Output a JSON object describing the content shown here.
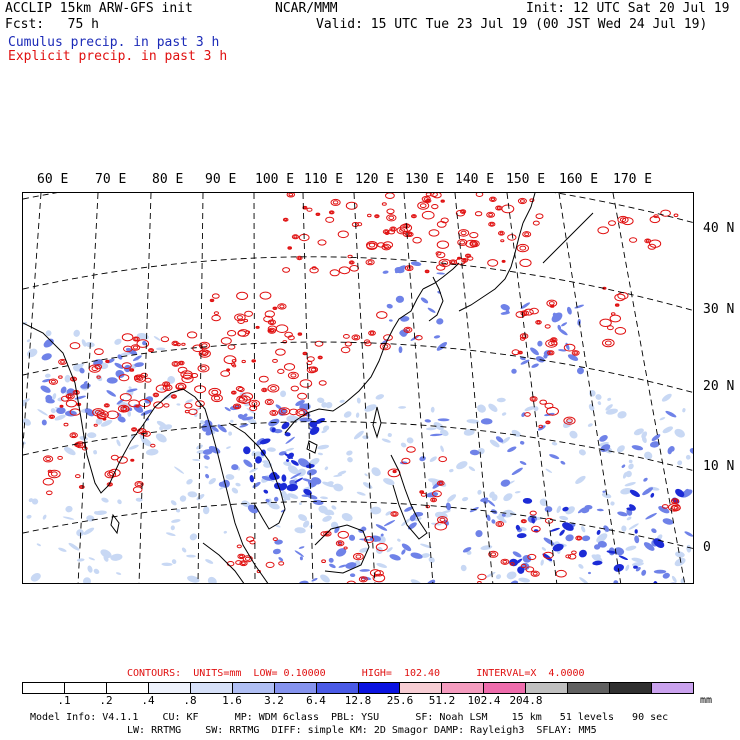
{
  "header": {
    "line1_left": "ACCLIP 15km ARW-GFS init",
    "line1_center": "NCAR/MMM",
    "line1_right": "Init: 12 UTC Sat 20 Jul 19",
    "line2_left": "Fcst:   75 h",
    "line2_right": "Valid: 15 UTC Tue 23 Jul 19 (00 JST Wed 24 Jul 19)",
    "legend_cumulus": "Cumulus precip. in past 3 h",
    "legend_explicit": "Explicit precip. in past 3 h"
  },
  "map": {
    "lon_labels": [
      "60 E",
      "70 E",
      "80 E",
      "90 E",
      "100 E",
      "110 E",
      "120 E",
      "130 E",
      "140 E",
      "150 E",
      "160 E",
      "170 E"
    ],
    "lat_labels": [
      "40 N",
      "30 N",
      "20 N",
      "10 N",
      "0"
    ],
    "colors": {
      "coast": "#000000",
      "grid": "#000000",
      "explicit_contour": "#e01010",
      "cumulus_light": "#c8d8f4",
      "cumulus_mid": "#6f82e8",
      "cumulus_dark": "#1c2bd6"
    }
  },
  "footer": {
    "contours": "CONTOURS:  UNITS=mm  LOW= 0.10000      HIGH=  102.40      INTERVAL=X  4.0000",
    "colorbar_labels": [
      ".1",
      ".2",
      ".4",
      ".8",
      "1.6",
      "3.2",
      "6.4",
      "12.8",
      "25.6",
      "51.2",
      "102.4",
      "204.8"
    ],
    "colorbar_unit": "mm",
    "colorbar_colors": [
      "#ffffff",
      "#ffffff",
      "#ffffff",
      "#eef2fc",
      "#d6e0f8",
      "#b0bff4",
      "#8593ee",
      "#4a5ae6",
      "#0a12e0",
      "#f7cdd4",
      "#f59cbf",
      "#ee6cac",
      "#c0c0c0",
      "#606060",
      "#303030",
      "#caa2ee"
    ],
    "model_info_1": "Model Info: V4.1.1    CU: KF      MP: WDM 6class  PBL: YSU      SF: Noah LSM    15 km   51 levels   90 sec",
    "model_info_2": "LW: RRTMG    SW: RRTMG  DIFF: simple KM: 2D Smagor DAMP: Rayleigh3  SFLAY: MM5"
  }
}
